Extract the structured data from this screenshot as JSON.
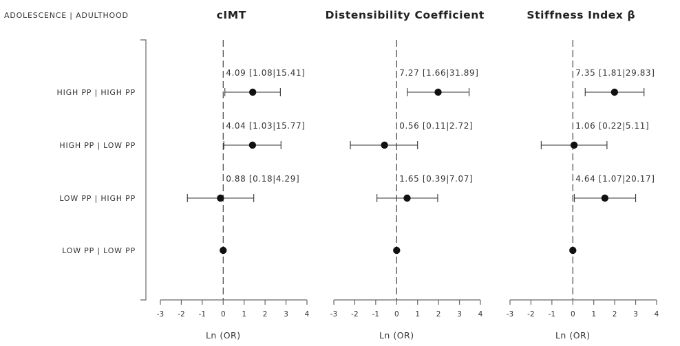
{
  "chart_data": {
    "type": "scatter",
    "header": "ADOLESCENCE | ADULTHOOD",
    "categories": [
      "HIGH PP | HIGH PP",
      "HIGH PP | LOW PP",
      "LOW PP | HIGH PP",
      "LOW PP | LOW PP"
    ],
    "xlabel": "Ln (OR)",
    "xlim": [
      -3,
      4
    ],
    "xticks": [
      "-3",
      "-2",
      "-1",
      "0",
      "1",
      "2",
      "3",
      "4"
    ],
    "panels": [
      {
        "title": "cIMT",
        "points": [
          {
            "category": "HIGH PP | HIGH PP",
            "est": 1.41,
            "low": 0.08,
            "high": 2.73,
            "label": "4.09 [1.08|15.41]"
          },
          {
            "category": "HIGH PP | LOW PP",
            "est": 1.4,
            "low": 0.03,
            "high": 2.76,
            "label": "4.04 [1.03|15.77]"
          },
          {
            "category": "LOW PP | HIGH PP",
            "est": -0.13,
            "low": -1.71,
            "high": 1.46,
            "label": "0.88 [0.18|4.29]"
          },
          {
            "category": "LOW PP | LOW PP",
            "est": 0,
            "low": null,
            "high": null,
            "label": ""
          }
        ]
      },
      {
        "title": "Distensibility  Coefficient",
        "points": [
          {
            "category": "HIGH PP | HIGH PP",
            "est": 1.98,
            "low": 0.51,
            "high": 3.46,
            "label": "7.27 [1.66|31.89]"
          },
          {
            "category": "HIGH PP | LOW PP",
            "est": -0.58,
            "low": -2.21,
            "high": 1.0,
            "label": "0.56 [0.11|2.72]"
          },
          {
            "category": "LOW PP | HIGH PP",
            "est": 0.5,
            "low": -0.94,
            "high": 1.96,
            "label": "1.65 [0.39|7.07]"
          },
          {
            "category": "LOW PP | LOW PP",
            "est": 0,
            "low": null,
            "high": null,
            "label": ""
          }
        ]
      },
      {
        "title": "Stiffness Index β",
        "points": [
          {
            "category": "HIGH PP | HIGH PP",
            "est": 1.99,
            "low": 0.59,
            "high": 3.4,
            "label": "7.35 [1.81|29.83]"
          },
          {
            "category": "HIGH PP | LOW PP",
            "est": 0.06,
            "low": -1.51,
            "high": 1.63,
            "label": "1.06 [0.22|5.11]"
          },
          {
            "category": "LOW PP | HIGH PP",
            "est": 1.53,
            "low": 0.07,
            "high": 3.0,
            "label": "4.64 [1.07|20.17]"
          },
          {
            "category": "LOW PP | LOW PP",
            "est": 0,
            "low": null,
            "high": null,
            "label": ""
          }
        ]
      }
    ]
  }
}
